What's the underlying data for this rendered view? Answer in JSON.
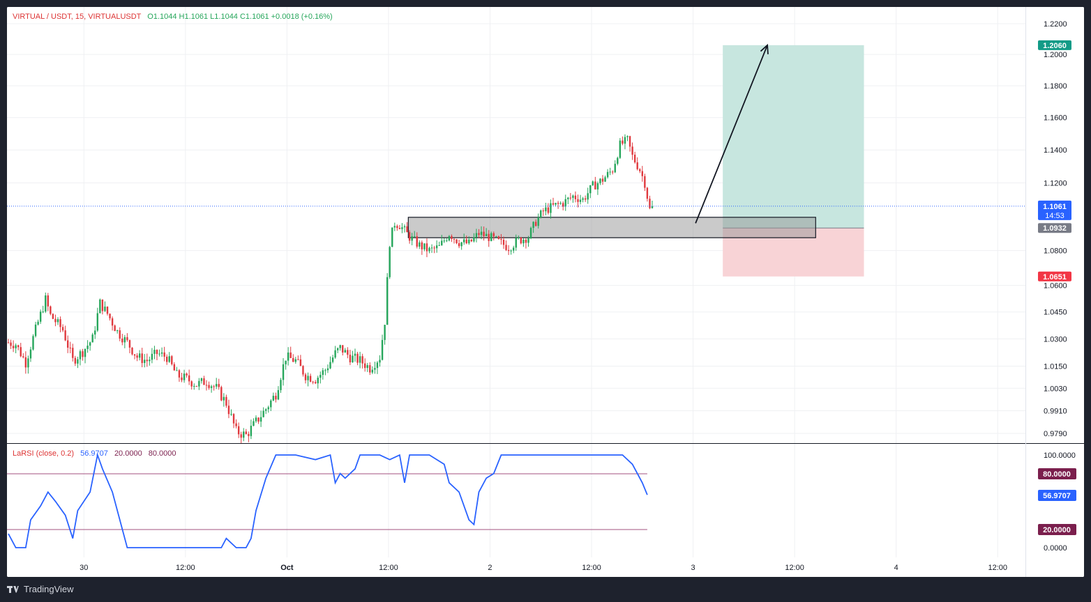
{
  "header": {
    "symbol": "VIRTUAL / USDT, 15, VIRTUALUSDT",
    "ohlc": "O1.1044  H1.1061  L1.1044  C1.1061  +0.0018 (+0.16%)"
  },
  "rsi_header": {
    "name": "LaRSI (close, 0.2)",
    "value": "56.9707",
    "lower": "20.0000",
    "upper": "80.0000"
  },
  "branding": {
    "logo_icon": "tradingview-logo-icon",
    "name": "TradingView"
  },
  "colors": {
    "up": "#26a65b",
    "down": "#e0393e",
    "rsi_line": "#2962ff",
    "rsi_band": "#a3507f",
    "target_zone": "#c7e6df",
    "stop_zone": "#f8d3d6",
    "zone_box": "#c8c8c8",
    "last_price_label": "#2962ff",
    "target_label": "#129b87",
    "stop_label": "#f23645",
    "entry_label": "#787b86",
    "band_label": "#7b1f4d"
  },
  "price_labels": {
    "target": "1.2060",
    "last": "1.1061",
    "countdown": "14:53",
    "entry": "1.0932",
    "stop": "1.0651"
  },
  "rsi_labels": {
    "upper": "80.0000",
    "value": "56.9707",
    "lower": "20.0000"
  },
  "chart_data": [
    {
      "type": "candlestick",
      "title": "VIRTUAL / USDT, 15, VIRTUALUSDT",
      "timeframe": "15",
      "x_ticks": [
        "30",
        "12:00",
        "Oct",
        "12:00",
        "2",
        "12:00",
        "3",
        "12:00",
        "4",
        "12:00"
      ],
      "y_ticks": [
        "1.2200",
        "1.2000",
        "1.1800",
        "1.1600",
        "1.1400",
        "1.1200",
        "1.0800",
        "1.0600",
        "1.0450",
        "1.0300",
        "1.0150",
        "1.0030",
        "0.9910",
        "0.9790"
      ],
      "y_scale": "log",
      "grid": true,
      "close_path_anchors": [
        [
          0,
          1.028
        ],
        [
          3,
          1.027
        ],
        [
          7,
          1.017
        ],
        [
          11,
          1.035
        ],
        [
          15,
          1.052
        ],
        [
          17,
          1.043
        ],
        [
          22,
          1.035
        ],
        [
          26,
          1.018
        ],
        [
          30,
          1.023
        ],
        [
          34,
          1.03
        ],
        [
          37,
          1.05
        ],
        [
          40,
          1.044
        ],
        [
          44,
          1.034
        ],
        [
          48,
          1.028
        ],
        [
          52,
          1.02
        ],
        [
          56,
          1.018
        ],
        [
          60,
          1.022
        ],
        [
          64,
          1.02
        ],
        [
          68,
          1.01
        ],
        [
          72,
          1.008
        ],
        [
          76,
          1.005
        ],
        [
          80,
          1.007
        ],
        [
          84,
          1.003
        ],
        [
          88,
          0.995
        ],
        [
          92,
          0.98
        ],
        [
          96,
          0.978
        ],
        [
          100,
          0.985
        ],
        [
          104,
          0.992
        ],
        [
          108,
          1.0
        ],
        [
          112,
          1.02
        ],
        [
          116,
          1.018
        ],
        [
          120,
          1.01
        ],
        [
          124,
          1.008
        ],
        [
          128,
          1.013
        ],
        [
          132,
          1.022
        ],
        [
          134,
          1.025
        ],
        [
          138,
          1.02
        ],
        [
          142,
          1.018
        ],
        [
          146,
          1.014
        ],
        [
          150,
          1.02
        ],
        [
          152,
          1.04
        ],
        [
          154,
          1.085
        ],
        [
          156,
          1.096
        ],
        [
          158,
          1.095
        ],
        [
          162,
          1.088
        ],
        [
          166,
          1.083
        ],
        [
          170,
          1.08
        ],
        [
          174,
          1.082
        ],
        [
          178,
          1.09
        ],
        [
          182,
          1.085
        ],
        [
          186,
          1.084
        ],
        [
          190,
          1.09
        ],
        [
          194,
          1.088
        ],
        [
          198,
          1.085
        ],
        [
          202,
          1.082
        ],
        [
          206,
          1.086
        ],
        [
          210,
          1.088
        ],
        [
          213,
          1.097
        ],
        [
          216,
          1.103
        ],
        [
          220,
          1.106
        ],
        [
          224,
          1.108
        ],
        [
          228,
          1.112
        ],
        [
          232,
          1.11
        ],
        [
          236,
          1.118
        ],
        [
          240,
          1.122
        ],
        [
          244,
          1.128
        ],
        [
          247,
          1.143
        ],
        [
          250,
          1.146
        ],
        [
          252,
          1.136
        ],
        [
          255,
          1.128
        ],
        [
          257,
          1.12
        ],
        [
          259,
          1.104
        ],
        [
          260,
          1.106
        ]
      ],
      "last_price": 1.1061
    },
    {
      "type": "line",
      "title": "LaRSI (close, 0.2)",
      "ylim": [
        0,
        100
      ],
      "y_ticks": [
        "100.0000",
        "80.0000",
        "56.9707",
        "20.0000",
        "0.0000"
      ],
      "bands": [
        20,
        80
      ],
      "series": [
        {
          "name": "LaRSI (close, 0.2)",
          "points": [
            [
              0,
              15
            ],
            [
              3,
              0
            ],
            [
              7,
              0
            ],
            [
              9,
              30
            ],
            [
              13,
              45
            ],
            [
              16,
              60
            ],
            [
              19,
              50
            ],
            [
              23,
              35
            ],
            [
              26,
              10
            ],
            [
              28,
              40
            ],
            [
              33,
              60
            ],
            [
              36,
              100
            ],
            [
              38,
              85
            ],
            [
              42,
              60
            ],
            [
              46,
              20
            ],
            [
              48,
              0
            ],
            [
              60,
              0
            ],
            [
              80,
              0
            ],
            [
              86,
              0
            ],
            [
              88,
              10
            ],
            [
              92,
              0
            ],
            [
              96,
              0
            ],
            [
              98,
              10
            ],
            [
              100,
              40
            ],
            [
              104,
              75
            ],
            [
              108,
              100
            ],
            [
              116,
              100
            ],
            [
              124,
              95
            ],
            [
              130,
              100
            ],
            [
              132,
              70
            ],
            [
              134,
              80
            ],
            [
              136,
              75
            ],
            [
              140,
              85
            ],
            [
              142,
              100
            ],
            [
              150,
              100
            ],
            [
              154,
              95
            ],
            [
              158,
              100
            ],
            [
              160,
              70
            ],
            [
              162,
              100
            ],
            [
              170,
              100
            ],
            [
              176,
              90
            ],
            [
              178,
              70
            ],
            [
              182,
              60
            ],
            [
              186,
              30
            ],
            [
              188,
              25
            ],
            [
              190,
              60
            ],
            [
              193,
              75
            ],
            [
              196,
              80
            ],
            [
              199,
              100
            ],
            [
              220,
              100
            ],
            [
              248,
              100
            ],
            [
              252,
              90
            ],
            [
              256,
              70
            ],
            [
              258,
              57
            ]
          ]
        }
      ],
      "current_value": 56.9707
    }
  ],
  "annotations": {
    "position_tool": {
      "entry": 1.0932,
      "target": 1.206,
      "stop": 1.0651
    },
    "support_zone": {
      "top": 1.0995,
      "bottom": 1.0875
    },
    "arrow": {
      "direction": "up",
      "from_price": 1.096,
      "to_price": 1.206
    }
  }
}
